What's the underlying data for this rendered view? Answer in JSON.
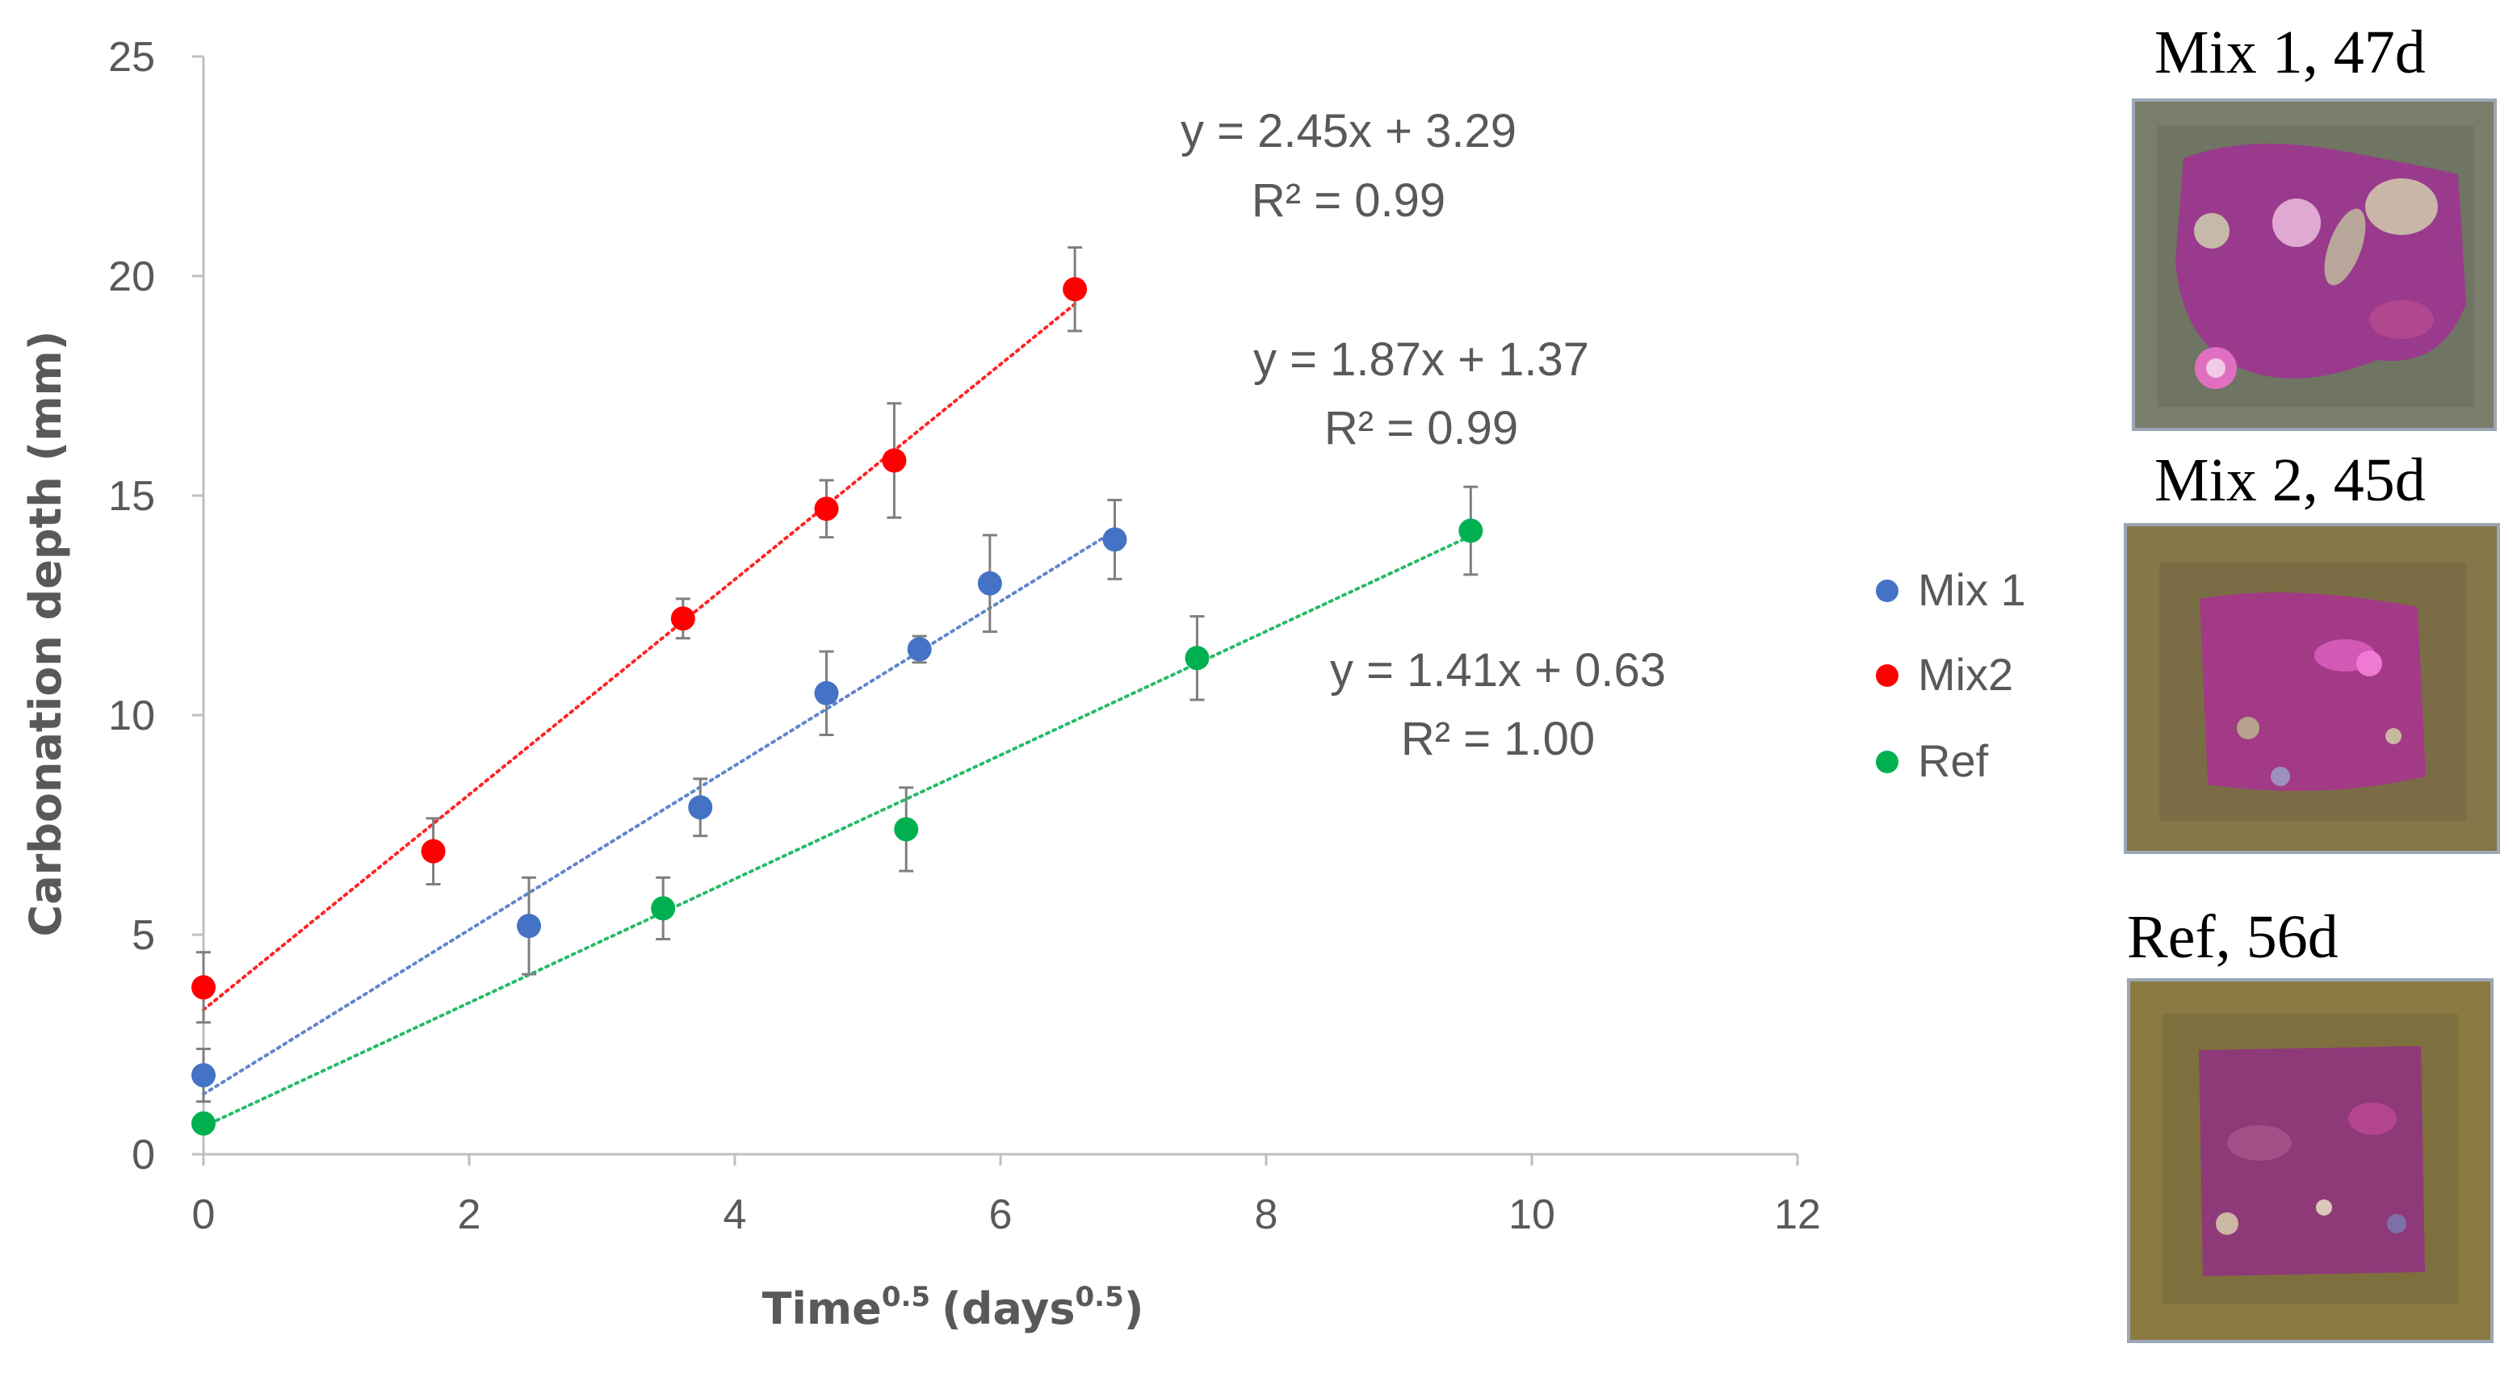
{
  "chart_data": {
    "type": "scatter",
    "title": "",
    "xlabel": "Time",
    "xlabel_sup": "0.5",
    "xlabel_unit": "(days",
    "xlabel_unit_sup": "0.5",
    "xlabel_close": ")",
    "ylabel": "Carbonation depth (mm)",
    "xlim": [
      0,
      12
    ],
    "ylim": [
      0,
      25
    ],
    "x_ticks": [
      "0",
      "2",
      "4",
      "6",
      "8",
      "10",
      "12"
    ],
    "y_ticks": [
      "0",
      "5",
      "10",
      "15",
      "20",
      "25"
    ],
    "grid": false,
    "legend_position": "right",
    "series": [
      {
        "name": "Mix 1",
        "color": "#4472C4",
        "points": [
          {
            "x": 0,
            "y": 1.8,
            "err": 0.6
          },
          {
            "x": 2.45,
            "y": 5.2,
            "err": 1.1
          },
          {
            "x": 3.74,
            "y": 7.9,
            "err": 0.65
          },
          {
            "x": 4.69,
            "y": 10.5,
            "err": 0.95
          },
          {
            "x": 5.39,
            "y": 11.5,
            "err": 0.3
          },
          {
            "x": 5.92,
            "y": 13.0,
            "err": 1.1
          },
          {
            "x": 6.86,
            "y": 14.0,
            "err": 0.9
          }
        ],
        "trend": {
          "slope": 1.87,
          "intercept": 1.37,
          "x_end": 6.86,
          "eq1": "y = 1.87x + 1.37",
          "eq2": "R² = 0.99"
        }
      },
      {
        "name": "Mix2",
        "color": "#FF0000",
        "points": [
          {
            "x": 0,
            "y": 3.8,
            "err": 0.8
          },
          {
            "x": 1.73,
            "y": 6.9,
            "err": 0.75
          },
          {
            "x": 3.61,
            "y": 12.2,
            "err": 0.45
          },
          {
            "x": 4.69,
            "y": 14.7,
            "err": 0.65
          },
          {
            "x": 5.2,
            "y": 15.8,
            "err": 1.3
          },
          {
            "x": 6.56,
            "y": 19.7,
            "err": 0.95
          }
        ],
        "trend": {
          "slope": 2.45,
          "intercept": 3.29,
          "x_end": 6.56,
          "eq1": "y = 2.45x + 3.29",
          "eq2": "R² = 0.99"
        }
      },
      {
        "name": "Ref",
        "color": "#00B050",
        "points": [
          {
            "x": 0,
            "y": 0.7,
            "err": 0.0
          },
          {
            "x": 3.46,
            "y": 5.6,
            "err": 0.7
          },
          {
            "x": 5.29,
            "y": 7.4,
            "err": 0.95
          },
          {
            "x": 7.48,
            "y": 11.3,
            "err": 0.95
          },
          {
            "x": 9.54,
            "y": 14.2,
            "err": 1.0
          }
        ],
        "trend": {
          "slope": 1.41,
          "intercept": 0.63,
          "x_end": 9.54,
          "eq1": "y = 1.41x + 0.63",
          "eq2": "R² = 1.00"
        }
      }
    ]
  },
  "samples": [
    {
      "label": "Mix 1, 47d",
      "fill": "#9a3a8c",
      "border": "#7c7f6c"
    },
    {
      "label": "Mix 2, 45d",
      "fill": "#a33a86",
      "border": "#86774a"
    },
    {
      "label": "Ref, 56d",
      "fill": "#8e3a78",
      "border": "#8a7a42"
    }
  ]
}
